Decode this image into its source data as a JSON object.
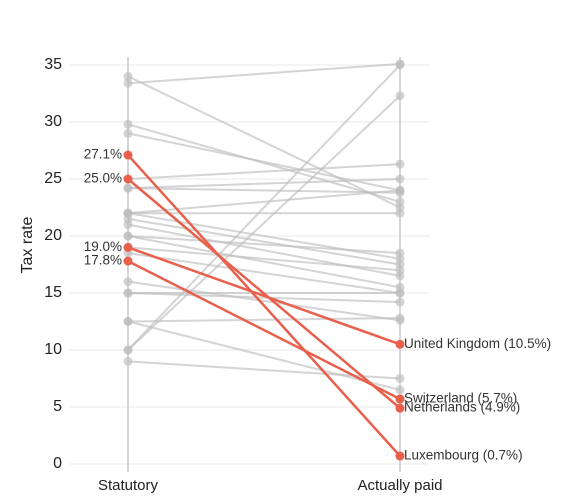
{
  "chart_data": {
    "type": "slope",
    "ylabel": "Tax rate",
    "categories": [
      "Statutory",
      "Actually paid"
    ],
    "ylim": [
      0,
      35
    ],
    "yticks": [
      0,
      5,
      10,
      15,
      20,
      25,
      30,
      35
    ],
    "grid": true,
    "color": "#bdbdbd",
    "highlight_color": "#e8604c",
    "lines": [
      {
        "values": [
          34.0,
          22.5
        ]
      },
      {
        "values": [
          33.4,
          35.1
        ]
      },
      {
        "values": [
          29.8,
          23.0
        ]
      },
      {
        "values": [
          29.0,
          24.0
        ]
      },
      {
        "values": [
          25.0,
          26.3
        ]
      },
      {
        "values": [
          24.2,
          23.8
        ]
      },
      {
        "values": [
          24.2,
          25.0
        ]
      },
      {
        "values": [
          22.0,
          24.0
        ]
      },
      {
        "values": [
          22.0,
          18.0
        ]
      },
      {
        "values": [
          22.0,
          22.0
        ]
      },
      {
        "values": [
          21.5,
          17.5
        ]
      },
      {
        "values": [
          21.0,
          16.5
        ]
      },
      {
        "values": [
          20.0,
          18.5
        ]
      },
      {
        "values": [
          20.0,
          15.5
        ]
      },
      {
        "values": [
          19.0,
          17.0
        ]
      },
      {
        "values": [
          18.5,
          15.0
        ]
      },
      {
        "values": [
          16.0,
          12.6
        ]
      },
      {
        "values": [
          15.0,
          15.0
        ]
      },
      {
        "values": [
          15.0,
          14.2
        ]
      },
      {
        "values": [
          12.5,
          12.8
        ]
      },
      {
        "values": [
          12.5,
          6.5
        ]
      },
      {
        "values": [
          10.0,
          32.3
        ]
      },
      {
        "values": [
          10.0,
          35.0
        ]
      },
      {
        "values": [
          9.0,
          7.5
        ]
      }
    ],
    "highlighted": [
      {
        "values": [
          27.1,
          0.7
        ],
        "start_label": "27.1%",
        "end_label": "Luxembourg (0.7%)"
      },
      {
        "values": [
          25.0,
          4.9
        ],
        "start_label": "25.0%",
        "end_label": "Netherlands (4.9%)"
      },
      {
        "values": [
          19.0,
          10.5
        ],
        "start_label": "19.0%",
        "end_label": "United Kingdom (10.5%)"
      },
      {
        "values": [
          17.8,
          5.7
        ],
        "start_label": "17.8%",
        "end_label": "Switzerland (5.7%)"
      }
    ]
  }
}
